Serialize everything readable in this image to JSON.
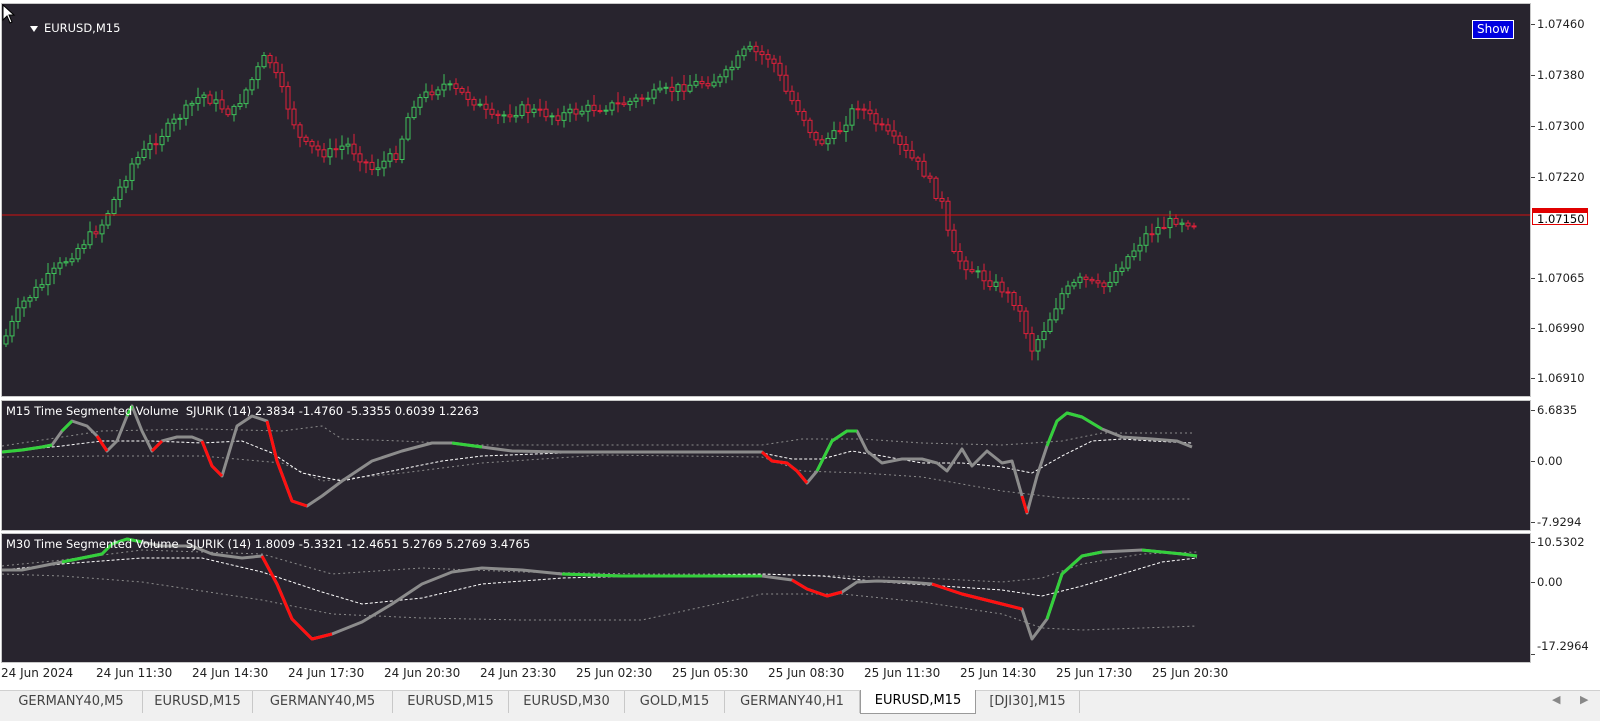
{
  "main_chart": {
    "symbol_title": "EURUSD,M15",
    "show_button": "Show",
    "price_axis": [
      "1.07460",
      "1.07380",
      "1.07300",
      "1.07220",
      "1.07065",
      "1.06990",
      "1.06910"
    ],
    "current_price": "1.07150",
    "colors": {
      "background": "#28242e",
      "bull": "#3ec05a",
      "bear": "#e0203a",
      "price_line": "#d01010"
    }
  },
  "indicator_m15": {
    "title": "M15 Time Segmented Volume  SJURIK (14) 2.3834 -1.4760 -5.3355 0.6039 1.2263",
    "axis": [
      "6.6835",
      "0.00",
      "-7.9294"
    ]
  },
  "indicator_m30": {
    "title": "M30 Time Segmented Volume  SJURIK (14) 1.8009 -5.3321 -12.4651 5.2769 5.2769 3.4765",
    "axis": [
      "10.5302",
      "0.00",
      "-17.2964"
    ]
  },
  "time_axis": [
    "24 Jun 2024",
    "24 Jun 11:30",
    "24 Jun 14:30",
    "24 Jun 17:30",
    "24 Jun 20:30",
    "24 Jun 23:30",
    "25 Jun 02:30",
    "25 Jun 05:30",
    "25 Jun 08:30",
    "25 Jun 11:30",
    "25 Jun 14:30",
    "25 Jun 17:30",
    "25 Jun 20:30"
  ],
  "tabs": [
    "GERMANY40,M5",
    "EURUSD,M15",
    "GERMANY40,M5",
    "EURUSD,M15",
    "EURUSD,M30",
    "GOLD,M15",
    "GERMANY40,H1",
    "EURUSD,M15",
    "[DJI30],M15"
  ],
  "active_tab_index": 7
}
